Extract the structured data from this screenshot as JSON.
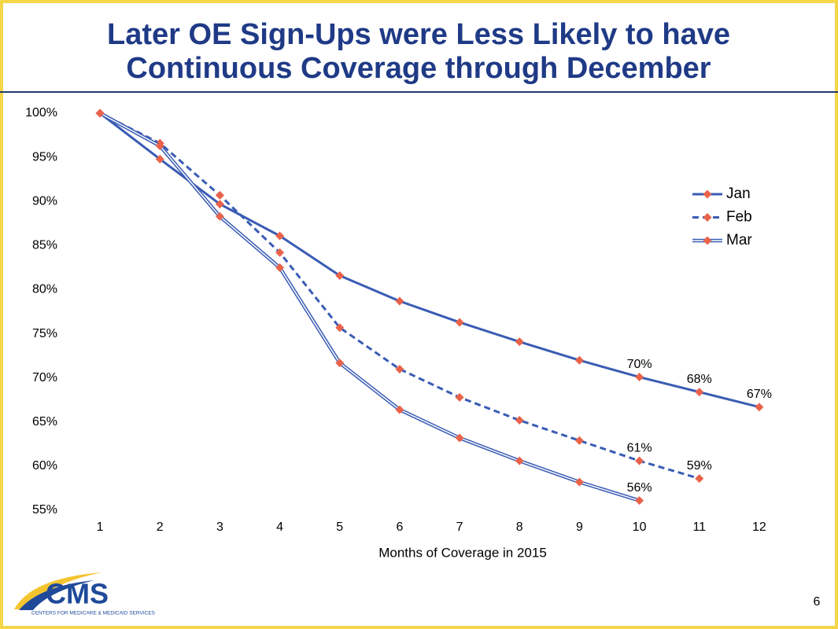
{
  "chart_data": {
    "type": "line",
    "title": [
      "Later OE Sign-Ups were Less Likely to have",
      "Continuous Coverage through December"
    ],
    "x_label": "Months of Coverage in 2015",
    "categories": [
      "1",
      "2",
      "3",
      "4",
      "5",
      "6",
      "7",
      "8",
      "9",
      "10",
      "11",
      "12"
    ],
    "ylim": [
      55,
      100
    ],
    "yticks": [
      {
        "value": 55,
        "label": "55%"
      },
      {
        "value": 60,
        "label": "60%"
      },
      {
        "value": 65,
        "label": "65%"
      },
      {
        "value": 70,
        "label": "70%"
      },
      {
        "value": 75,
        "label": "75%"
      },
      {
        "value": 80,
        "label": "80%"
      },
      {
        "value": 85,
        "label": "85%"
      },
      {
        "value": 90,
        "label": "90%"
      },
      {
        "value": 95,
        "label": "95%"
      },
      {
        "value": 100,
        "label": "100%"
      }
    ],
    "grid": false,
    "legend": "right",
    "marker_color": "#e8634a",
    "series": [
      {
        "name": "Jan",
        "color": "#3a5cb4",
        "line_style": "solid",
        "values": [
          100,
          94.8,
          89.7,
          86.1,
          81.6,
          78.7,
          76.3,
          74.1,
          72.0,
          70.1,
          68.4,
          66.7
        ],
        "value_labels": [
          null,
          null,
          null,
          null,
          null,
          null,
          null,
          null,
          null,
          "70%",
          "68%",
          "67%"
        ]
      },
      {
        "name": "Feb",
        "color": "#3a5cb4",
        "line_style": "dashed",
        "values": [
          100,
          96.6,
          90.7,
          84.2,
          75.7,
          71.0,
          67.8,
          65.2,
          62.9,
          60.6,
          58.6,
          null
        ],
        "value_labels": [
          null,
          null,
          null,
          null,
          null,
          null,
          null,
          null,
          null,
          "61%",
          "59%",
          null
        ]
      },
      {
        "name": "Mar",
        "color": "#3a5cb4",
        "line_style": "double",
        "values": [
          100,
          96.3,
          88.3,
          82.5,
          71.7,
          66.4,
          63.2,
          60.6,
          58.2,
          56.1,
          null,
          null
        ],
        "value_labels": [
          null,
          null,
          null,
          null,
          null,
          null,
          null,
          null,
          null,
          "56%",
          null,
          null
        ]
      }
    ]
  },
  "logo": {
    "text": "CMS",
    "subtitle": "CENTERS FOR MEDICARE & MEDICAID SERVICES"
  },
  "page_number": "6"
}
